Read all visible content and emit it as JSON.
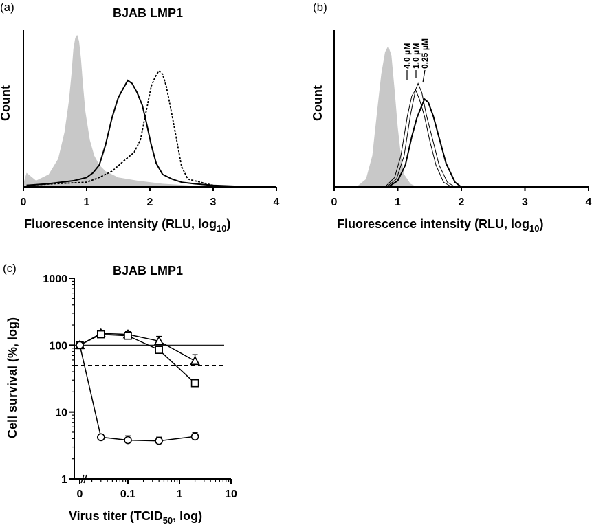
{
  "chart_data": [
    {
      "panel": "(a)",
      "type": "area",
      "title": "BJAB LMP1",
      "xlabel": "Fluorescence intensity (RLU, log",
      "xlabel_sub": "10",
      "xlabel_end": ")",
      "ylabel": "Count",
      "xlim": [
        0,
        4
      ],
      "xticks": [
        "0",
        "1",
        "2",
        "3",
        "4"
      ],
      "ylim": [
        0,
        1
      ],
      "series": [
        {
          "style": "gray-filled",
          "color": "#c8c8c8",
          "x": [
            0,
            0.05,
            0.2,
            0.4,
            0.55,
            0.65,
            0.72,
            0.76,
            0.79,
            0.82,
            0.85,
            0.88,
            0.91,
            0.94,
            0.98,
            1.05,
            1.12,
            1.2,
            1.3,
            1.5,
            1.8,
            2.2,
            2.6,
            3.0
          ],
          "y": [
            0.02,
            0.09,
            0.04,
            0.08,
            0.18,
            0.35,
            0.55,
            0.72,
            0.88,
            0.95,
            0.97,
            0.93,
            0.82,
            0.66,
            0.48,
            0.3,
            0.2,
            0.14,
            0.1,
            0.06,
            0.04,
            0.02,
            0.01,
            0
          ]
        },
        {
          "style": "solid",
          "color": "#000000",
          "x": [
            0.05,
            0.4,
            0.8,
            1.0,
            1.1,
            1.2,
            1.3,
            1.4,
            1.5,
            1.58,
            1.65,
            1.72,
            1.8,
            1.88,
            1.95,
            2.02,
            2.1,
            2.2,
            2.35,
            2.5,
            2.7,
            3.0,
            3.3,
            3.6
          ],
          "y": [
            0.01,
            0.02,
            0.04,
            0.06,
            0.09,
            0.14,
            0.27,
            0.44,
            0.57,
            0.63,
            0.68,
            0.66,
            0.6,
            0.52,
            0.4,
            0.27,
            0.15,
            0.08,
            0.05,
            0.03,
            0.02,
            0.01,
            0.005,
            0
          ]
        },
        {
          "style": "dotted",
          "color": "#000000",
          "x": [
            0.05,
            0.5,
            1.0,
            1.2,
            1.4,
            1.6,
            1.75,
            1.85,
            1.95,
            2.02,
            2.08,
            2.14,
            2.2,
            2.26,
            2.32,
            2.4,
            2.5,
            2.6,
            2.8,
            3.0,
            3.2
          ],
          "y": [
            0.01,
            0.02,
            0.03,
            0.06,
            0.1,
            0.17,
            0.22,
            0.3,
            0.5,
            0.64,
            0.7,
            0.74,
            0.72,
            0.64,
            0.52,
            0.35,
            0.13,
            0.05,
            0.03,
            0.01,
            0
          ]
        }
      ]
    },
    {
      "panel": "(b)",
      "type": "area",
      "title": "",
      "xlabel": "Fluorescence intensity (RLU, log",
      "xlabel_sub": "10",
      "xlabel_end": ")",
      "ylabel": "Count",
      "xlim": [
        0,
        4
      ],
      "xticks": [
        "0",
        "1",
        "2",
        "3",
        "4"
      ],
      "ylim": [
        0,
        1
      ],
      "annotations": [
        "4.0 μM",
        "1.0 μM",
        "0.25 μM"
      ],
      "series": [
        {
          "style": "gray-filled",
          "color": "#c8c8c8",
          "x": [
            0.35,
            0.5,
            0.6,
            0.68,
            0.74,
            0.8,
            0.85,
            0.9,
            0.95,
            1.0,
            1.05,
            1.1,
            1.2,
            1.3
          ],
          "y": [
            0,
            0.05,
            0.2,
            0.5,
            0.72,
            0.86,
            0.9,
            0.84,
            0.62,
            0.38,
            0.2,
            0.08,
            0.02,
            0
          ]
        },
        {
          "style": "thin",
          "color": "#000000",
          "x": [
            0.8,
            0.95,
            1.05,
            1.15,
            1.22,
            1.28,
            1.34,
            1.42,
            1.5,
            1.6,
            1.72,
            1.85
          ],
          "y": [
            0,
            0.06,
            0.2,
            0.45,
            0.58,
            0.62,
            0.56,
            0.45,
            0.3,
            0.14,
            0.03,
            0
          ]
        },
        {
          "style": "thin",
          "color": "#000000",
          "x": [
            0.82,
            0.98,
            1.1,
            1.2,
            1.28,
            1.32,
            1.38,
            1.45,
            1.55,
            1.65,
            1.78,
            1.9
          ],
          "y": [
            0,
            0.05,
            0.2,
            0.46,
            0.62,
            0.66,
            0.6,
            0.46,
            0.3,
            0.14,
            0.03,
            0
          ]
        },
        {
          "style": "thick",
          "color": "#000000",
          "x": [
            0.85,
            1.0,
            1.12,
            1.22,
            1.3,
            1.38,
            1.42,
            1.48,
            1.56,
            1.66,
            1.76,
            1.9,
            2.0
          ],
          "y": [
            0,
            0.04,
            0.14,
            0.32,
            0.44,
            0.52,
            0.56,
            0.54,
            0.45,
            0.3,
            0.15,
            0.03,
            0
          ]
        }
      ]
    },
    {
      "panel": "(c)",
      "type": "line",
      "title": "BJAB LMP1",
      "xlabel": "Virus titer (TCID",
      "xlabel_sub": "50",
      "xlabel_end": ", log)",
      "ylabel": "Cell survival (%, log)",
      "yscale": "log",
      "ylim": [
        1,
        1000
      ],
      "yticks": [
        "1",
        "10",
        "100",
        "1000"
      ],
      "xscale": "log",
      "xlim": [
        0.01,
        10
      ],
      "xticks": [
        "0",
        "0.1",
        "1",
        "10"
      ],
      "reference_lines": [
        {
          "y": 100,
          "style": "solid"
        },
        {
          "y": 50,
          "style": "dashed"
        }
      ],
      "series": [
        {
          "marker": "triangle",
          "x": [
            0,
            0.03,
            0.1,
            0.4,
            2
          ],
          "y": [
            100,
            150,
            145,
            115,
            58
          ],
          "err": [
            0,
            10,
            14,
            20,
            14
          ]
        },
        {
          "marker": "square",
          "x": [
            0,
            0.03,
            0.1,
            0.4,
            2
          ],
          "y": [
            100,
            145,
            138,
            85,
            27
          ],
          "err": [
            0,
            8,
            8,
            8,
            0
          ]
        },
        {
          "marker": "circle",
          "x": [
            0,
            0.03,
            0.1,
            0.4,
            2
          ],
          "y": [
            100,
            4.2,
            3.8,
            3.7,
            4.3
          ],
          "err": [
            0,
            0.4,
            0.6,
            0.5,
            0.6
          ]
        }
      ]
    }
  ]
}
